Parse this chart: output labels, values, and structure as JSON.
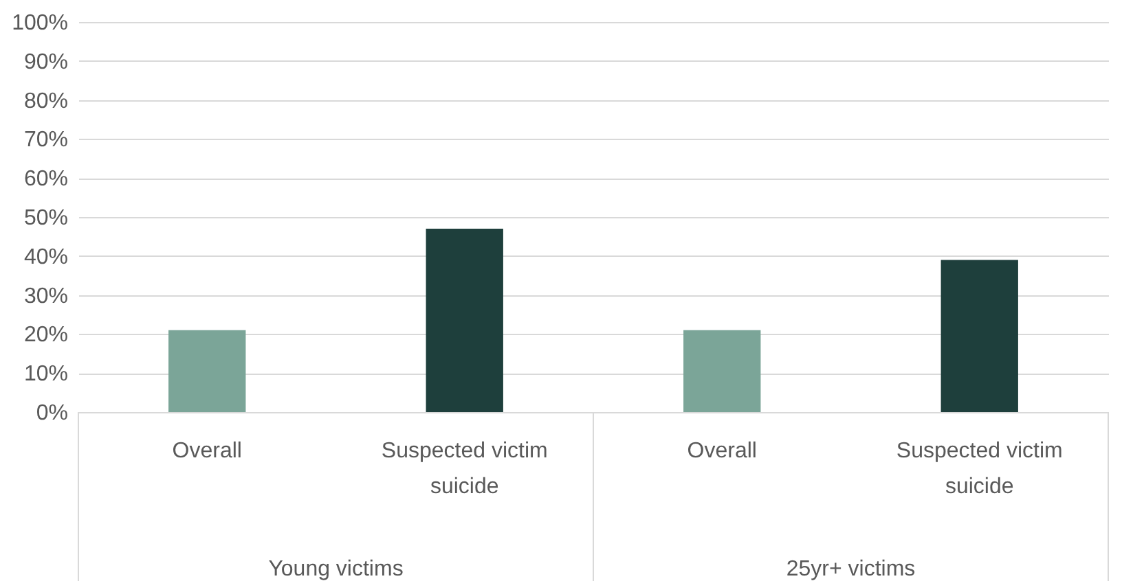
{
  "chart_data": {
    "type": "bar",
    "categories": [
      "Overall",
      "Suspected victim suicide",
      "Overall",
      "Suspected victim suicide"
    ],
    "values": [
      21,
      47,
      21,
      39
    ],
    "colors": [
      "#7ba598",
      "#1e3f3c",
      "#7ba598",
      "#1e3f3c"
    ],
    "ylim": [
      0,
      100
    ],
    "yticks": [
      {
        "value": 0,
        "label": "0%"
      },
      {
        "value": 10,
        "label": "10%"
      },
      {
        "value": 20,
        "label": "20%"
      },
      {
        "value": 30,
        "label": "30%"
      },
      {
        "value": 40,
        "label": "40%"
      },
      {
        "value": 50,
        "label": "50%"
      },
      {
        "value": 60,
        "label": "60%"
      },
      {
        "value": 70,
        "label": "70%"
      },
      {
        "value": 80,
        "label": "80%"
      },
      {
        "value": 90,
        "label": "90%"
      },
      {
        "value": 100,
        "label": "100%"
      }
    ],
    "annotations": [
      "Young victims",
      "25yr+ victims"
    ],
    "grid": "y"
  }
}
